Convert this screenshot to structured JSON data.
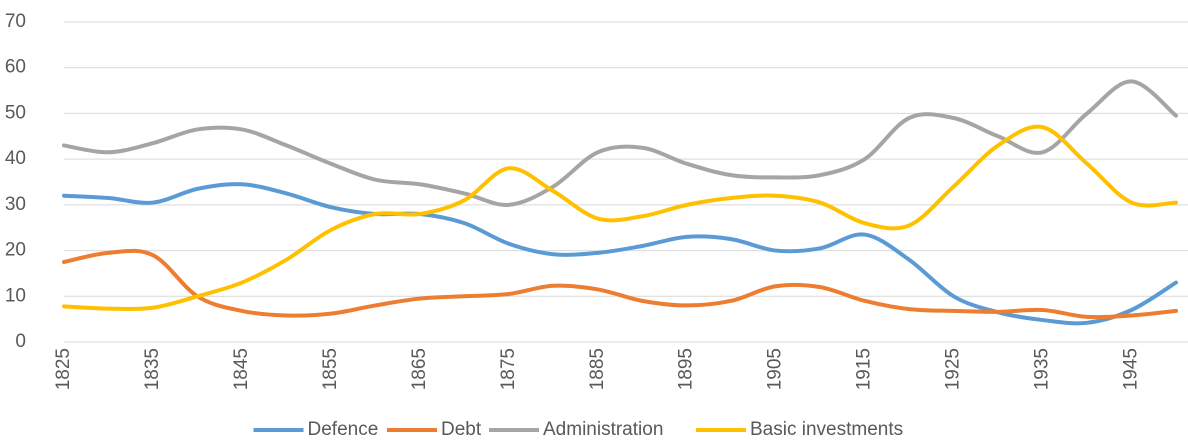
{
  "chart_data": {
    "type": "line",
    "x": [
      1825,
      1830,
      1835,
      1840,
      1845,
      1850,
      1855,
      1860,
      1865,
      1870,
      1875,
      1880,
      1885,
      1890,
      1895,
      1900,
      1905,
      1910,
      1915,
      1920,
      1925,
      1930,
      1935,
      1940,
      1945,
      1950
    ],
    "xlim": [
      1825,
      1950
    ],
    "xticks": [
      1825,
      1835,
      1845,
      1855,
      1865,
      1875,
      1885,
      1895,
      1905,
      1915,
      1925,
      1935,
      1945
    ],
    "ylim": [
      0,
      70
    ],
    "yticks": [
      0,
      10,
      20,
      30,
      40,
      50,
      60,
      70
    ],
    "grid": true,
    "legend": "bottom",
    "smooth": true,
    "series": [
      {
        "name": "Defence",
        "color": "#5b9bd5",
        "values": [
          32,
          31.5,
          30.5,
          33.5,
          34.5,
          32.5,
          29.5,
          28,
          28,
          26,
          21.5,
          19.2,
          19.5,
          21,
          23,
          22.5,
          20,
          20.5,
          23.5,
          18,
          10,
          6.5,
          4.8,
          4.2,
          7,
          13
        ]
      },
      {
        "name": "Debt",
        "color": "#ed7d31",
        "values": [
          17.5,
          19.5,
          19,
          10,
          6.8,
          5.8,
          6.2,
          8,
          9.5,
          10,
          10.5,
          12.3,
          11.5,
          9,
          8,
          9,
          12.2,
          12,
          9,
          7.2,
          6.8,
          6.6,
          7,
          5.5,
          5.8,
          6.8
        ]
      },
      {
        "name": "Administration",
        "color": "#a5a5a5",
        "values": [
          43,
          41.5,
          43.5,
          46.5,
          46.5,
          43,
          39,
          35.5,
          34.5,
          32.5,
          30,
          34,
          41.5,
          42.5,
          39,
          36.5,
          36,
          36.5,
          40,
          49,
          49,
          45,
          41.5,
          50,
          57,
          49.5
        ]
      },
      {
        "name": "Basic investments",
        "color": "#ffc000",
        "values": [
          7.8,
          7.3,
          7.5,
          10,
          13,
          18,
          24.5,
          28,
          28,
          31,
          38,
          33,
          27,
          27.5,
          30,
          31.5,
          32,
          30.5,
          26,
          25.5,
          34,
          43,
          47,
          39,
          30.5,
          30.5
        ]
      }
    ]
  }
}
